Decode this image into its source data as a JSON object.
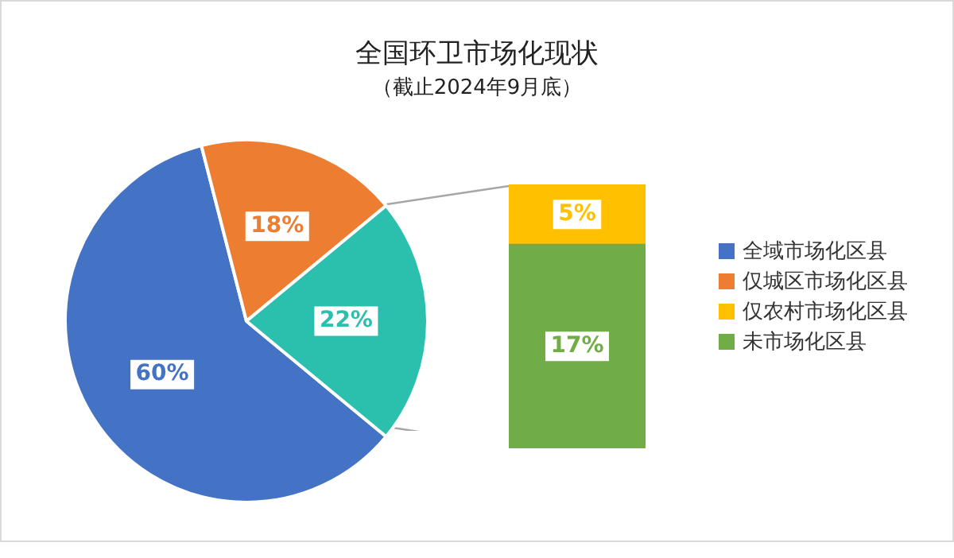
{
  "chart_data": [
    {
      "type": "pie",
      "title": "全国环卫市场化现状",
      "subtitle": "（截止2024年9月底）",
      "categories": [
        "全域市场化区县",
        "仅城区市场化区县",
        null
      ],
      "values": [
        60,
        18,
        22
      ],
      "colors": [
        "#4472c4",
        "#ed7d31",
        "#2bbfae"
      ],
      "value_labels": [
        "60%",
        "18%",
        "22%"
      ],
      "legend": "right"
    },
    {
      "type": "bar",
      "stacked": true,
      "categories": [
        null
      ],
      "legend": "right",
      "series": [
        {
          "name": "未市场化区县",
          "color": "#70ad47",
          "values": [
            17
          ],
          "value_labels": [
            "17%"
          ]
        },
        {
          "name": "仅农村市场化区县",
          "color": "#ffc000",
          "values": [
            5
          ],
          "value_labels": [
            "5%"
          ]
        }
      ]
    }
  ]
}
